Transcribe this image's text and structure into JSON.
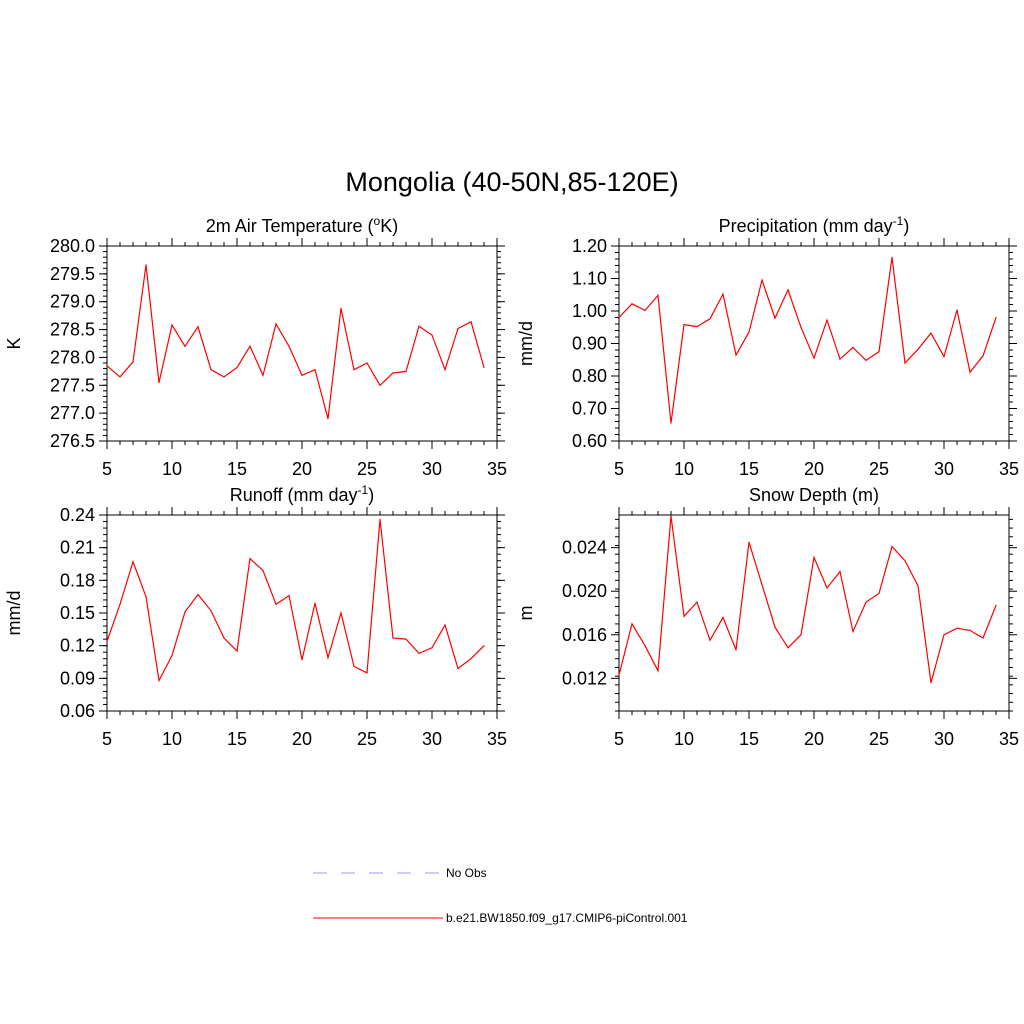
{
  "figure": {
    "title": "Mongolia (40-50N,85-120E)",
    "legend": [
      {
        "label": "No Obs",
        "color": "#9999ff",
        "style": "dashed"
      },
      {
        "label": "b.e21.BW1850.f09_g17.CMIP6-piControl.001",
        "color": "#ff0000",
        "style": "solid"
      }
    ]
  },
  "chart_data": [
    {
      "type": "line",
      "title": "2m Air Temperature (",
      "title_sup": "o",
      "title_post": "K)",
      "ylabel": "K",
      "xlim": [
        5,
        35
      ],
      "ylim": [
        276.5,
        280.0
      ],
      "xticks": [
        "5",
        "10",
        "15",
        "20",
        "25",
        "30",
        "35"
      ],
      "yticks": [
        "276.5",
        "277.0",
        "277.5",
        "278.0",
        "278.5",
        "279.0",
        "279.5",
        "280.0"
      ],
      "ytick_values": [
        276.5,
        277.0,
        277.5,
        278.0,
        278.5,
        279.0,
        279.5,
        280.0
      ],
      "series": [
        {
          "name": "b.e21.BW1850.f09_g17.CMIP6-piControl.001",
          "color": "#ff0000",
          "x": [
            5,
            6,
            7,
            8,
            9,
            10,
            11,
            12,
            13,
            14,
            15,
            16,
            17,
            18,
            19,
            20,
            21,
            22,
            23,
            24,
            25,
            26,
            27,
            28,
            29,
            30,
            31,
            32,
            33,
            34
          ],
          "values": [
            277.85,
            277.65,
            277.92,
            279.66,
            277.55,
            278.58,
            278.2,
            278.55,
            277.78,
            277.65,
            277.82,
            278.2,
            277.68,
            278.6,
            278.2,
            277.68,
            277.78,
            276.9,
            278.88,
            277.78,
            277.9,
            277.5,
            277.72,
            277.75,
            278.56,
            278.4,
            277.78,
            278.52,
            278.64,
            277.82
          ]
        }
      ]
    },
    {
      "type": "line",
      "title": "Precipitation (mm day",
      "title_sup": "-1",
      "title_post": ")",
      "ylabel": "mm/d",
      "xlim": [
        5,
        35
      ],
      "ylim": [
        0.6,
        1.2
      ],
      "xticks": [
        "5",
        "10",
        "15",
        "20",
        "25",
        "30",
        "35"
      ],
      "yticks": [
        "0.60",
        "0.70",
        "0.80",
        "0.90",
        "1.00",
        "1.10",
        "1.20"
      ],
      "ytick_values": [
        0.6,
        0.7,
        0.8,
        0.9,
        1.0,
        1.1,
        1.2
      ],
      "series": [
        {
          "name": "b.e21.BW1850.f09_g17.CMIP6-piControl.001",
          "color": "#ff0000",
          "x": [
            5,
            6,
            7,
            8,
            9,
            10,
            11,
            12,
            13,
            14,
            15,
            16,
            17,
            18,
            19,
            20,
            21,
            22,
            23,
            24,
            25,
            26,
            27,
            28,
            29,
            30,
            31,
            32,
            33,
            34
          ],
          "values": [
            0.98,
            1.022,
            1.002,
            1.048,
            0.655,
            0.958,
            0.952,
            0.976,
            1.052,
            0.865,
            0.935,
            1.095,
            0.978,
            1.065,
            0.95,
            0.855,
            0.972,
            0.852,
            0.888,
            0.848,
            0.875,
            1.165,
            0.84,
            0.882,
            0.932,
            0.86,
            1.003,
            0.812,
            0.862,
            0.98
          ]
        }
      ]
    },
    {
      "type": "line",
      "title": "Runoff (mm day",
      "title_sup": "-1",
      "title_post": ")",
      "ylabel": "mm/d",
      "xlim": [
        5,
        35
      ],
      "ylim": [
        0.06,
        0.24
      ],
      "xticks": [
        "5",
        "10",
        "15",
        "20",
        "25",
        "30",
        "35"
      ],
      "yticks": [
        "0.06",
        "0.09",
        "0.12",
        "0.15",
        "0.18",
        "0.21",
        "0.24"
      ],
      "ytick_values": [
        0.06,
        0.09,
        0.12,
        0.15,
        0.18,
        0.21,
        0.24
      ],
      "series": [
        {
          "name": "b.e21.BW1850.f09_g17.CMIP6-piControl.001",
          "color": "#ff0000",
          "x": [
            5,
            6,
            7,
            8,
            9,
            10,
            11,
            12,
            13,
            14,
            15,
            16,
            17,
            18,
            19,
            20,
            21,
            22,
            23,
            24,
            25,
            26,
            27,
            28,
            29,
            30,
            31,
            32,
            33,
            34
          ],
          "values": [
            0.124,
            0.158,
            0.197,
            0.165,
            0.088,
            0.111,
            0.151,
            0.167,
            0.152,
            0.127,
            0.115,
            0.2,
            0.189,
            0.158,
            0.166,
            0.107,
            0.159,
            0.109,
            0.15,
            0.101,
            0.095,
            0.236,
            0.127,
            0.126,
            0.113,
            0.118,
            0.139,
            0.099,
            0.108,
            0.12
          ]
        }
      ]
    },
    {
      "type": "line",
      "title": "Snow Depth (m)",
      "title_sup": "",
      "title_post": "",
      "ylabel": "m",
      "xlim": [
        5,
        35
      ],
      "ylim": [
        0.009,
        0.027
      ],
      "xticks": [
        "5",
        "10",
        "15",
        "20",
        "25",
        "30",
        "35"
      ],
      "yticks": [
        "0.012",
        "0.016",
        "0.020",
        "0.024"
      ],
      "ytick_values": [
        0.012,
        0.016,
        0.02,
        0.024
      ],
      "series": [
        {
          "name": "b.e21.BW1850.f09_g17.CMIP6-piControl.001",
          "color": "#ff0000",
          "x": [
            5,
            6,
            7,
            8,
            9,
            10,
            11,
            12,
            13,
            14,
            15,
            16,
            17,
            18,
            19,
            20,
            21,
            22,
            23,
            24,
            25,
            26,
            27,
            28,
            29,
            30,
            31,
            32,
            33,
            34
          ],
          "values": [
            0.0123,
            0.017,
            0.015,
            0.0127,
            0.0269,
            0.0177,
            0.019,
            0.0155,
            0.0176,
            0.0146,
            0.0245,
            0.0206,
            0.0167,
            0.0148,
            0.016,
            0.0231,
            0.0203,
            0.0218,
            0.0163,
            0.019,
            0.0198,
            0.0241,
            0.0228,
            0.0205,
            0.0116,
            0.016,
            0.0166,
            0.0164,
            0.0157,
            0.0187
          ]
        }
      ]
    }
  ]
}
